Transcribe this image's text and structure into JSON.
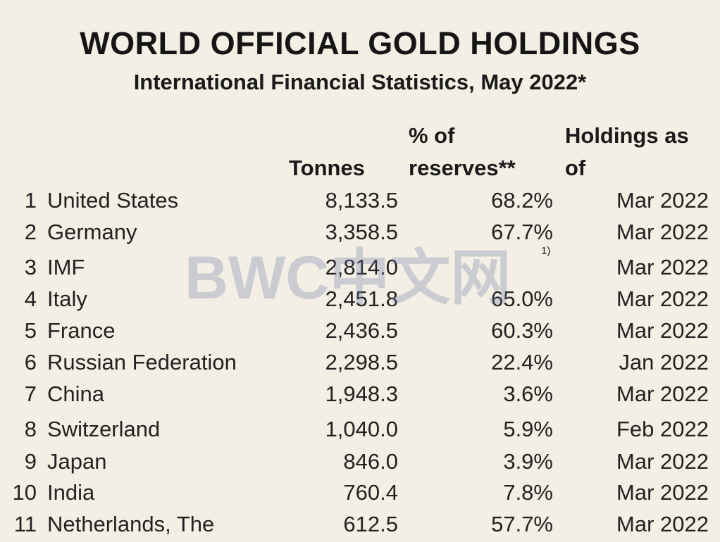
{
  "title": "WORLD OFFICIAL GOLD HOLDINGS",
  "subtitle": "International Financial Statistics, May 2022*",
  "headers": {
    "tonnes": "Tonnes",
    "pct_line1": "% of",
    "pct_line2": "reserves**",
    "holdings_line1": "Holdings as",
    "holdings_line2": "of"
  },
  "rows": [
    {
      "rank": "1",
      "country": "United States",
      "tonnes": "8,133.5",
      "pct": "68.2%",
      "date": "Mar 2022"
    },
    {
      "rank": "2",
      "country": "Germany",
      "tonnes": "3,358.5",
      "pct": "67.7%",
      "date": "Mar 2022"
    },
    {
      "rank": "3",
      "country": "IMF",
      "tonnes": "2,814.0",
      "pct": "",
      "note": "1)",
      "date": "Mar 2022"
    },
    {
      "rank": "4",
      "country": "Italy",
      "tonnes": "2,451.8",
      "pct": "65.0%",
      "date": "Mar 2022"
    },
    {
      "rank": "5",
      "country": "France",
      "tonnes": "2,436.5",
      "pct": "60.3%",
      "date": "Mar 2022"
    },
    {
      "rank": "6",
      "country": "Russian Federation",
      "tonnes": "2,298.5",
      "pct": "22.4%",
      "date": "Jan 2022"
    },
    {
      "rank": "7",
      "country": "China",
      "tonnes": "1,948.3",
      "pct": "3.6%",
      "date": "Mar 2022"
    },
    {
      "rank": "8",
      "country": "Switzerland",
      "tonnes": "1,040.0",
      "pct": "5.9%",
      "date": "Feb 2022"
    },
    {
      "rank": "9",
      "country": "Japan",
      "tonnes": "846.0",
      "pct": "3.9%",
      "date": "Mar 2022"
    },
    {
      "rank": "10",
      "country": "India",
      "tonnes": "760.4",
      "pct": "7.8%",
      "date": "Mar 2022"
    },
    {
      "rank": "11",
      "country": "Netherlands, The",
      "tonnes": "612.5",
      "pct": "57.7%",
      "date": "Mar 2022"
    }
  ],
  "watermark": "BWC中文网",
  "colors": {
    "background": "#f4efe4",
    "text": "#1c1c1c",
    "watermark": "#6e78aa"
  }
}
